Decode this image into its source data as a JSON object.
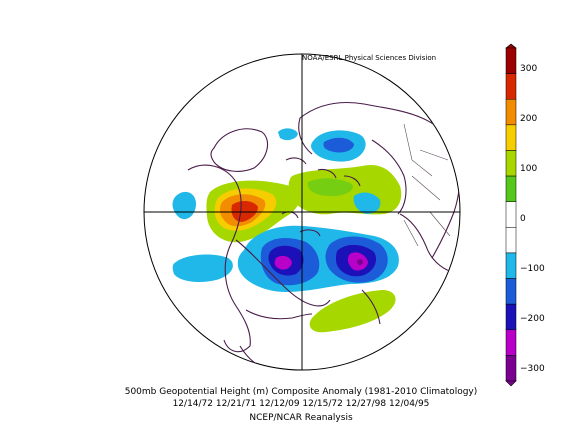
{
  "credit": "NOAA/ESRL Physical Sciences Division",
  "caption": {
    "line1": "500mb Geopotential Height (m) Composite Anomaly (1981-2010 Climatology)",
    "line2": "12/14/72 12/21/71 12/12/09 12/15/72 12/27/98 12/04/95",
    "line3": "NCEP/NCAR Reanalysis"
  },
  "colorbar": {
    "ticks": [
      "300",
      "200",
      "100",
      "0",
      "−100",
      "−200",
      "−300"
    ],
    "colors": [
      "#9c0000",
      "#d72800",
      "#f28c00",
      "#f6cd00",
      "#a6d800",
      "#55c81c",
      "#ffffff",
      "#ffffff",
      "#20b8e8",
      "#1c5cd8",
      "#1c10b8",
      "#b800c8",
      "#7a0092"
    ]
  },
  "anomalies": [
    {
      "name": "positive-anomaly-west-atlantic",
      "level": 300
    },
    {
      "name": "positive-anomaly-eurasia",
      "level": 100
    },
    {
      "name": "positive-anomaly-north-pacific",
      "level": 100
    },
    {
      "name": "negative-anomaly-pole",
      "level": -200
    },
    {
      "name": "negative-anomaly-alaska",
      "level": -300
    },
    {
      "name": "negative-anomaly-greenland",
      "level": -100
    }
  ]
}
